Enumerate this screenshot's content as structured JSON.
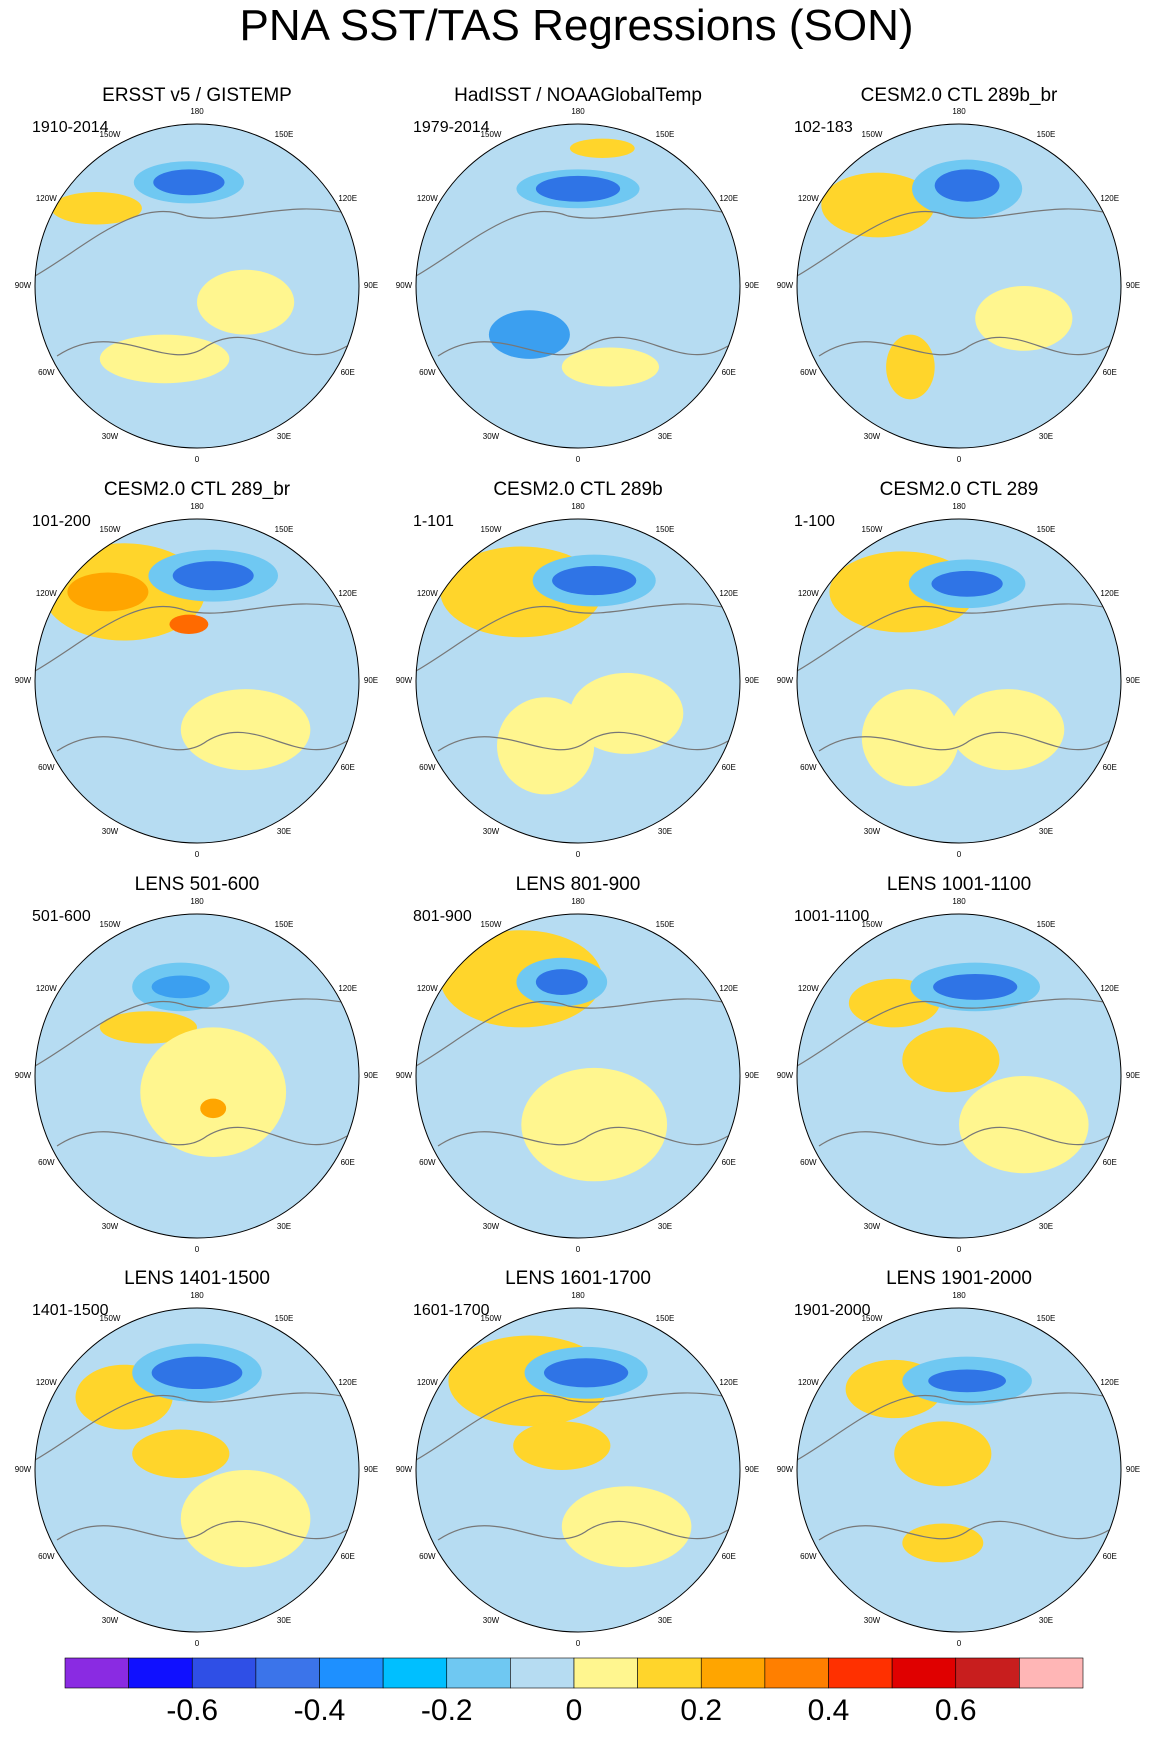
{
  "title": "PNA SST/TAS Regressions (SON)",
  "panels": [
    {
      "title": "ERSST v5 / GISTEMP",
      "period": "1910-2014"
    },
    {
      "title": "HadISST / NOAAGlobalTemp",
      "period": "1979-2014"
    },
    {
      "title": "CESM2.0 CTL 289b_br",
      "period": "102-183"
    },
    {
      "title": "CESM2.0 CTL 289_br",
      "period": "101-200"
    },
    {
      "title": "CESM2.0 CTL 289b",
      "period": "1-101"
    },
    {
      "title": "CESM2.0 CTL 289",
      "period": "1-100"
    },
    {
      "title": "LENS 501-600",
      "period": "501-600"
    },
    {
      "title": "LENS 801-900",
      "period": "801-900"
    },
    {
      "title": "LENS 1001-1100",
      "period": "1001-1100"
    },
    {
      "title": "LENS 1401-1500",
      "period": "1401-1500"
    },
    {
      "title": "LENS 1601-1700",
      "period": "1601-1700"
    },
    {
      "title": "LENS 1901-2000",
      "period": "1901-2000"
    }
  ],
  "longitude_labels": [
    "180",
    "150E",
    "120E",
    "90E",
    "60E",
    "30E",
    "0",
    "30W",
    "60W",
    "90W",
    "120W",
    "150W"
  ],
  "colorbar": {
    "colors": [
      "#8a2be2",
      "#1010ff",
      "#2f4fe6",
      "#3b74ea",
      "#1e90ff",
      "#00bfff",
      "#6fc8f2",
      "#b6dcf2",
      "#fff68f",
      "#ffd52b",
      "#ffa500",
      "#ff7f00",
      "#ff3000",
      "#e00000",
      "#c81e1e",
      "#ffb6b6"
    ],
    "tick_labels": [
      "-0.6",
      "-0.4",
      "-0.2",
      "0",
      "0.2",
      "0.4",
      "0.6"
    ]
  }
}
